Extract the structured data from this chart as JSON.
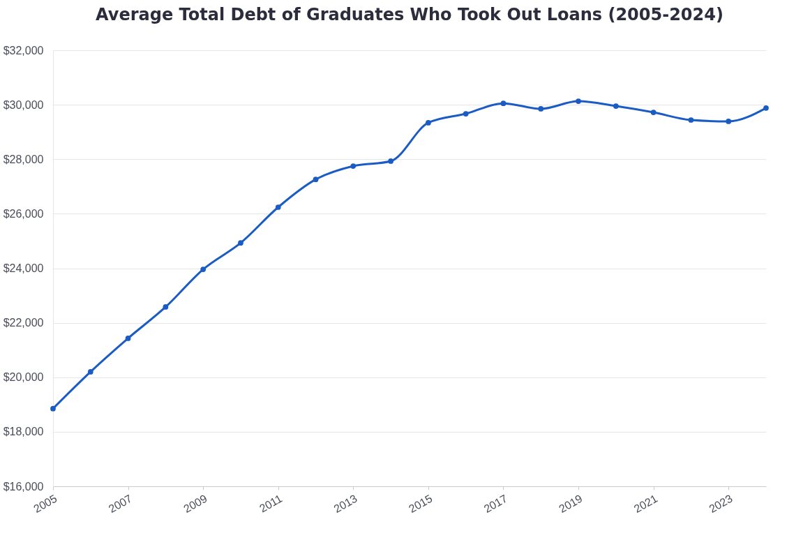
{
  "chart_data": {
    "type": "line",
    "title": "Average Total Debt of Graduates Who Took Out Loans (2005-2024)",
    "x": [
      2005,
      2006,
      2007,
      2008,
      2009,
      2010,
      2011,
      2012,
      2013,
      2014,
      2015,
      2016,
      2017,
      2018,
      2019,
      2020,
      2021,
      2022,
      2023,
      2024
    ],
    "series": [
      {
        "color": "#1a5bc4",
        "values": [
          18850,
          20200,
          21430,
          22580,
          23960,
          24930,
          26240,
          27260,
          27750,
          27930,
          29340,
          29670,
          30050,
          29850,
          30130,
          29950,
          29720,
          29440,
          29390,
          29880
        ]
      }
    ],
    "xlim": [
      2005,
      2024
    ],
    "xticks": [
      2005,
      2007,
      2009,
      2011,
      2013,
      2015,
      2017,
      2019,
      2021,
      2023
    ],
    "ylim": [
      16000,
      32000
    ],
    "yticks": [
      {
        "value": 16000,
        "label": "$16,000"
      },
      {
        "value": 18000,
        "label": "$18,000"
      },
      {
        "value": 20000,
        "label": "$20,000"
      },
      {
        "value": 22000,
        "label": "$22,000"
      },
      {
        "value": 24000,
        "label": "$24,000"
      },
      {
        "value": 26000,
        "label": "$26,000"
      },
      {
        "value": 28000,
        "label": "$28,000"
      },
      {
        "value": 30000,
        "label": "$30,000"
      },
      {
        "value": 32000,
        "label": "$32,000"
      }
    ],
    "grid": "y",
    "legend": false,
    "marker": "circle",
    "line_style": "solid"
  }
}
